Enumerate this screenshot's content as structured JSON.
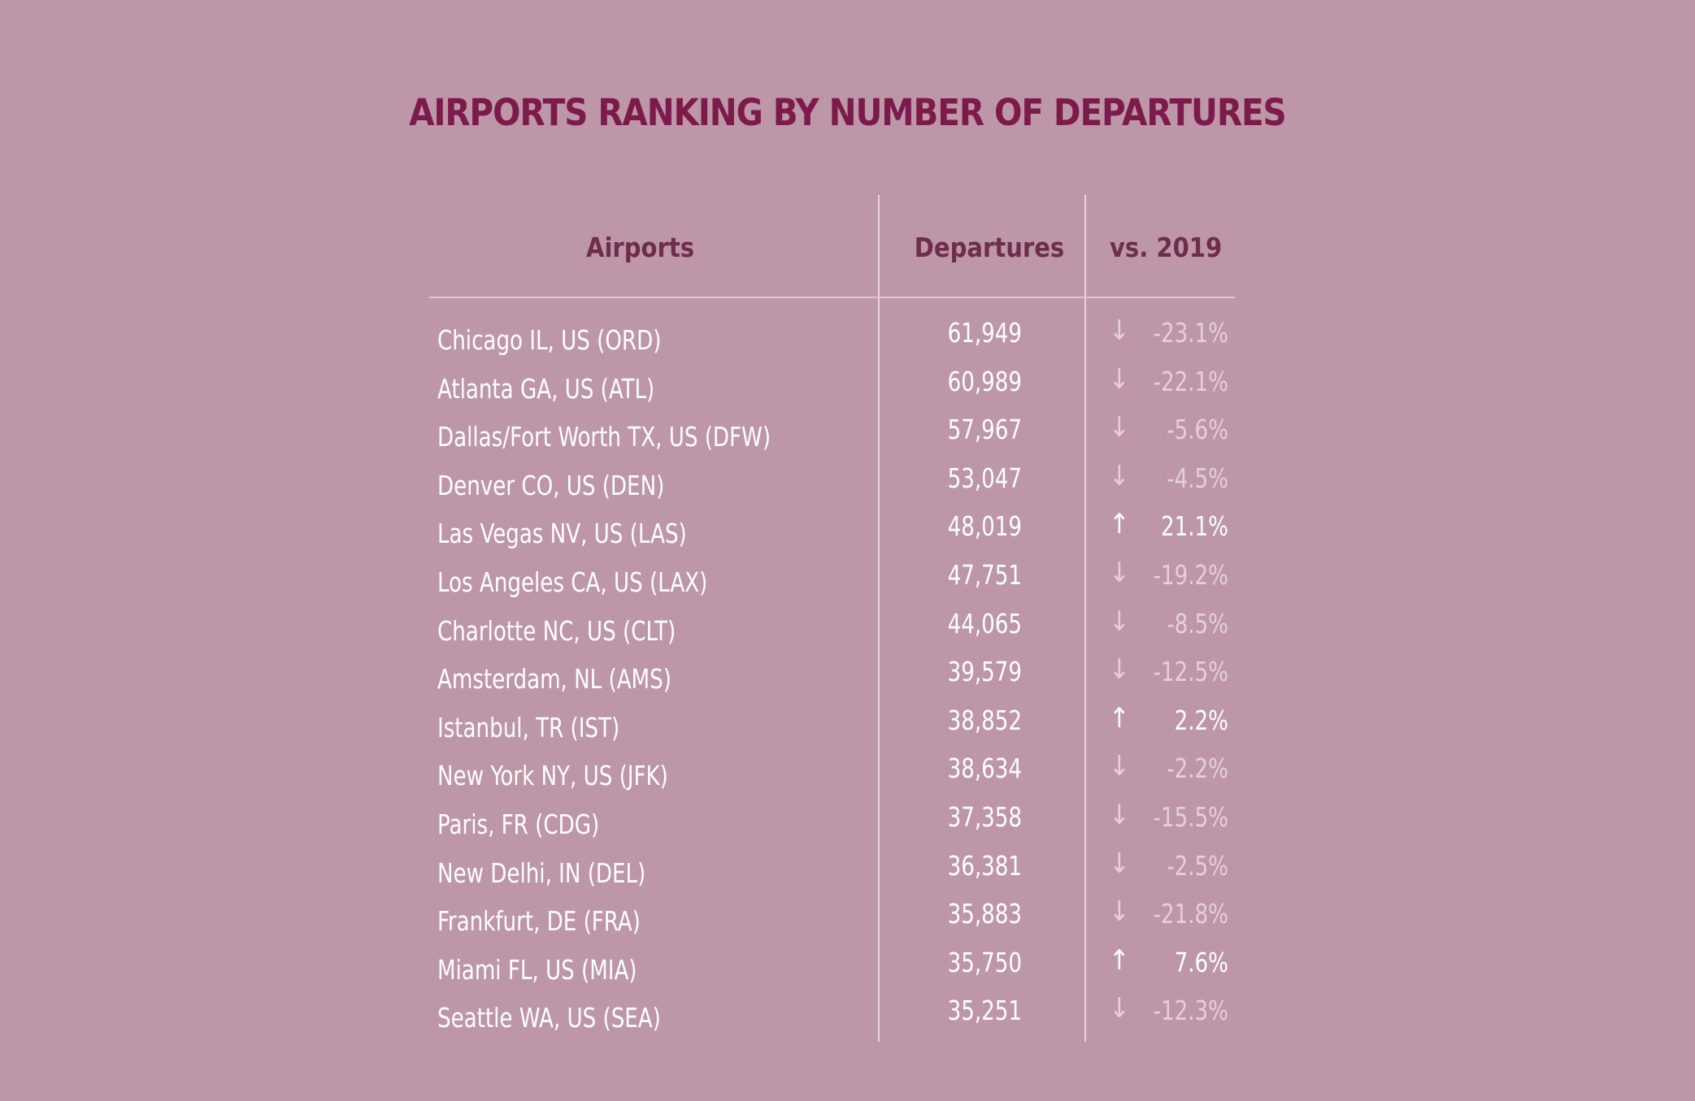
{
  "colors": {
    "background": "#bd96a7",
    "title": "#7d1a4c",
    "header": "#6e2d4b",
    "text": "#ffffff",
    "decrease": "#e4d0da",
    "increase": "#ffffff"
  },
  "chart_data": {
    "type": "table",
    "title": "AIRPORTS RANKING BY NUMBER OF DEPARTURES",
    "columns": [
      "Airports",
      "Departures",
      "vs. 2019"
    ],
    "rows": [
      {
        "airport": "Chicago IL, US (ORD)",
        "departures": "61,949",
        "change": "-23.1%",
        "direction": "down",
        "arrow": "↓"
      },
      {
        "airport": "Atlanta GA, US (ATL)",
        "departures": "60,989",
        "change": "-22.1%",
        "direction": "down",
        "arrow": "↓"
      },
      {
        "airport": "Dallas/Fort Worth TX, US (DFW)",
        "departures": "57,967",
        "change": "-5.6%",
        "direction": "down",
        "arrow": "↓"
      },
      {
        "airport": "Denver CO, US (DEN)",
        "departures": "53,047",
        "change": "-4.5%",
        "direction": "down",
        "arrow": "↓"
      },
      {
        "airport": "Las Vegas NV, US (LAS)",
        "departures": "48,019",
        "change": "21.1%",
        "direction": "up",
        "arrow": "↑"
      },
      {
        "airport": "Los Angeles CA, US (LAX)",
        "departures": "47,751",
        "change": "-19.2%",
        "direction": "down",
        "arrow": "↓"
      },
      {
        "airport": "Charlotte NC, US (CLT)",
        "departures": "44,065",
        "change": "-8.5%",
        "direction": "down",
        "arrow": "↓"
      },
      {
        "airport": "Amsterdam, NL (AMS)",
        "departures": "39,579",
        "change": "-12.5%",
        "direction": "down",
        "arrow": "↓"
      },
      {
        "airport": "Istanbul, TR (IST)",
        "departures": "38,852",
        "change": "2.2%",
        "direction": "up",
        "arrow": "↑"
      },
      {
        "airport": "New York NY, US (JFK)",
        "departures": "38,634",
        "change": "-2.2%",
        "direction": "down",
        "arrow": "↓"
      },
      {
        "airport": "Paris, FR (CDG)",
        "departures": "37,358",
        "change": "-15.5%",
        "direction": "down",
        "arrow": "↓"
      },
      {
        "airport": "New Delhi, IN (DEL)",
        "departures": "36,381",
        "change": "-2.5%",
        "direction": "down",
        "arrow": "↓"
      },
      {
        "airport": "Frankfurt, DE (FRA)",
        "departures": "35,883",
        "change": "-21.8%",
        "direction": "down",
        "arrow": "↓"
      },
      {
        "airport": "Miami FL, US (MIA)",
        "departures": "35,750",
        "change": "7.6%",
        "direction": "up",
        "arrow": "↑"
      },
      {
        "airport": "Seattle WA, US (SEA)",
        "departures": "35,251",
        "change": "-12.3%",
        "direction": "down",
        "arrow": "↓"
      }
    ]
  }
}
